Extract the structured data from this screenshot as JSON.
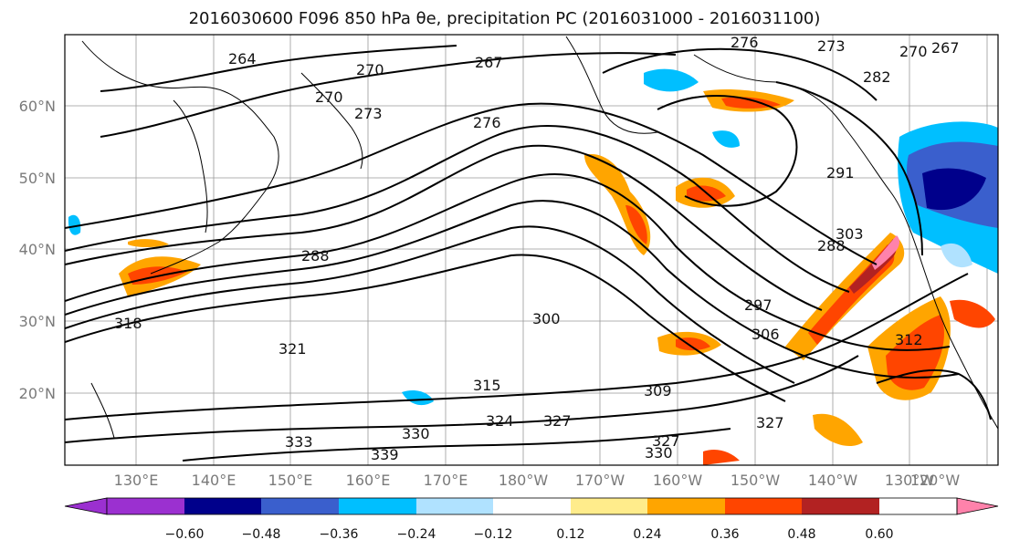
{
  "title": "2016030600 F096 850 hPa θe, precipitation PC (2016031000 - 2016031100)",
  "map": {
    "lat_labels": [
      "60°N",
      "50°N",
      "40°N",
      "30°N",
      "20°N"
    ],
    "lon_labels": [
      "130°E",
      "140°E",
      "150°E",
      "160°E",
      "170°E",
      "180°W",
      "170°W",
      "160°W",
      "150°W",
      "140°W",
      "130°W",
      "120°W"
    ],
    "contour_labels": [
      "264",
      "270",
      "270",
      "273",
      "276",
      "267",
      "276",
      "273",
      "270",
      "267",
      "282",
      "288",
      "291",
      "288",
      "297",
      "300",
      "303",
      "306",
      "312",
      "315",
      "321",
      "324",
      "327",
      "330",
      "333",
      "339",
      "327",
      "330",
      "309",
      "327",
      "318"
    ]
  },
  "colorbar": {
    "ticks": [
      "−0.60",
      "−0.48",
      "−0.36",
      "−0.24",
      "−0.12",
      "0.12",
      "0.24",
      "0.36",
      "0.48",
      "0.60"
    ],
    "colors": [
      "#9b30d0",
      "#00008b",
      "#3a5fcd",
      "#00bfff",
      "#b0e2ff",
      "#ffffff",
      "#ffec8b",
      "#ffa500",
      "#ff4500",
      "#b22222",
      "#ff82ab"
    ]
  }
}
